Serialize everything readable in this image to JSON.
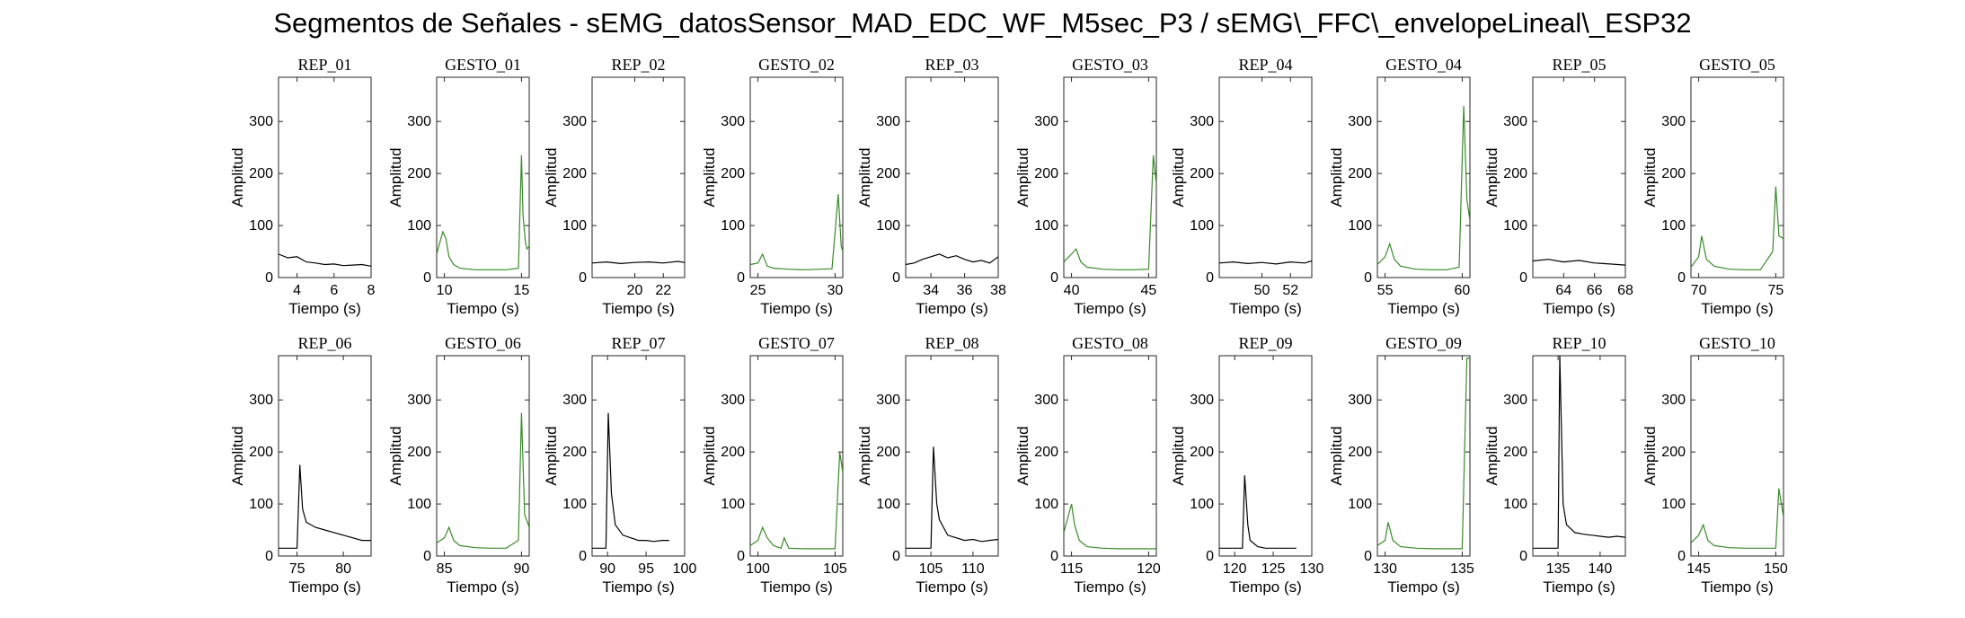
{
  "title": "Segmentos de Señales - sEMG_datosSensor_MAD_EDC_WF_M5sec_P3 / sEMG\\_FFC\\_envelopeLineal\\_ESP32",
  "colors": {
    "rep": "#000000",
    "gesto": "#3a8a2a"
  },
  "chart_data": [
    {
      "type": "line",
      "title": "REP_01",
      "xlabel": "Tiempo (s)",
      "ylabel": "Amplitud",
      "xlim": [
        3,
        8
      ],
      "ylim": [
        0,
        385
      ],
      "xticks": [
        4,
        6,
        8
      ],
      "yticks": [
        0,
        100,
        200,
        300
      ],
      "color": "#000000",
      "x": [
        3,
        3.5,
        4,
        4.5,
        5,
        5.5,
        6,
        6.5,
        7,
        7.5,
        8
      ],
      "y": [
        45,
        38,
        40,
        30,
        28,
        25,
        26,
        23,
        24,
        25,
        22
      ]
    },
    {
      "type": "line",
      "title": "GESTO_01",
      "xlabel": "Tiempo (s)",
      "ylabel": "Amplitud",
      "xlim": [
        9.5,
        15.5
      ],
      "ylim": [
        0,
        385
      ],
      "xticks": [
        10,
        15
      ],
      "yticks": [
        0,
        100,
        200,
        300
      ],
      "color": "#3a8a2a",
      "x": [
        9.5,
        9.9,
        10.1,
        10.3,
        10.6,
        11,
        12,
        13,
        14,
        14.8,
        15,
        15.1,
        15.25,
        15.35,
        15.5
      ],
      "y": [
        45,
        88,
        75,
        40,
        25,
        18,
        15,
        15,
        15,
        18,
        235,
        120,
        70,
        55,
        60
      ]
    },
    {
      "type": "line",
      "title": "REP_02",
      "xlabel": "Tiempo (s)",
      "ylabel": "Amplitud",
      "xlim": [
        17,
        23.5
      ],
      "ylim": [
        0,
        385
      ],
      "xticks": [
        20,
        22
      ],
      "yticks": [
        0,
        100,
        200,
        300
      ],
      "color": "#000000",
      "x": [
        17,
        18,
        19,
        20,
        21,
        22,
        23,
        23.5
      ],
      "y": [
        28,
        30,
        27,
        29,
        30,
        28,
        31,
        29
      ]
    },
    {
      "type": "line",
      "title": "GESTO_02",
      "xlabel": "Tiempo (s)",
      "ylabel": "Amplitud",
      "xlim": [
        24.5,
        30.5
      ],
      "ylim": [
        0,
        385
      ],
      "xticks": [
        25,
        30
      ],
      "yticks": [
        0,
        100,
        200,
        300
      ],
      "color": "#3a8a2a",
      "x": [
        24.5,
        25,
        25.3,
        25.6,
        26,
        27,
        28,
        29,
        29.8,
        30.2,
        30.4,
        30.5
      ],
      "y": [
        25,
        28,
        45,
        22,
        18,
        16,
        15,
        16,
        17,
        160,
        60,
        50
      ]
    },
    {
      "type": "line",
      "title": "REP_03",
      "xlabel": "Tiempo (s)",
      "ylabel": "Amplitud",
      "xlim": [
        32.5,
        38
      ],
      "ylim": [
        0,
        385
      ],
      "xticks": [
        34,
        36,
        38
      ],
      "yticks": [
        0,
        100,
        200,
        300
      ],
      "color": "#000000",
      "x": [
        32.5,
        33,
        33.5,
        34,
        34.5,
        35,
        35.5,
        36,
        36.5,
        37,
        37.5,
        38
      ],
      "y": [
        25,
        28,
        35,
        40,
        45,
        38,
        42,
        35,
        30,
        33,
        28,
        40
      ]
    },
    {
      "type": "line",
      "title": "GESTO_03",
      "xlabel": "Tiempo (s)",
      "ylabel": "Amplitud",
      "xlim": [
        39.5,
        45.5
      ],
      "ylim": [
        0,
        385
      ],
      "xticks": [
        40,
        45
      ],
      "yticks": [
        0,
        100,
        200,
        300
      ],
      "color": "#3a8a2a",
      "x": [
        39.5,
        40,
        40.3,
        40.6,
        41,
        42,
        43,
        44,
        45,
        45.3,
        45.5
      ],
      "y": [
        30,
        45,
        55,
        30,
        20,
        16,
        15,
        15,
        16,
        235,
        180
      ]
    },
    {
      "type": "line",
      "title": "REP_04",
      "xlabel": "Tiempo (s)",
      "ylabel": "Amplitud",
      "xlim": [
        47,
        53.5
      ],
      "ylim": [
        0,
        385
      ],
      "xticks": [
        50,
        52
      ],
      "yticks": [
        0,
        100,
        200,
        300
      ],
      "color": "#000000",
      "x": [
        47,
        48,
        49,
        50,
        51,
        52,
        53,
        53.5
      ],
      "y": [
        28,
        30,
        27,
        29,
        26,
        30,
        28,
        32
      ]
    },
    {
      "type": "line",
      "title": "GESTO_04",
      "xlabel": "Tiempo (s)",
      "ylabel": "Amplitud",
      "xlim": [
        54.5,
        60.5
      ],
      "ylim": [
        0,
        385
      ],
      "xticks": [
        55,
        60
      ],
      "yticks": [
        0,
        100,
        200,
        300
      ],
      "color": "#3a8a2a",
      "x": [
        54.5,
        55,
        55.3,
        55.6,
        56,
        57,
        58,
        59,
        59.8,
        60.1,
        60.3,
        60.5
      ],
      "y": [
        25,
        40,
        65,
        35,
        22,
        16,
        15,
        15,
        20,
        330,
        150,
        110
      ]
    },
    {
      "type": "line",
      "title": "REP_05",
      "xlabel": "Tiempo (s)",
      "ylabel": "Amplitud",
      "xlim": [
        62,
        68
      ],
      "ylim": [
        0,
        385
      ],
      "xticks": [
        64,
        66,
        68
      ],
      "yticks": [
        0,
        100,
        200,
        300
      ],
      "color": "#000000",
      "x": [
        62,
        63,
        64,
        65,
        66,
        67,
        68
      ],
      "y": [
        32,
        35,
        30,
        33,
        28,
        26,
        24
      ]
    },
    {
      "type": "line",
      "title": "GESTO_05",
      "xlabel": "Tiempo (s)",
      "ylabel": "Amplitud",
      "xlim": [
        69.5,
        75.5
      ],
      "ylim": [
        0,
        385
      ],
      "xticks": [
        70,
        75
      ],
      "yticks": [
        0,
        100,
        200,
        300
      ],
      "color": "#3a8a2a",
      "x": [
        69.5,
        70,
        70.2,
        70.5,
        71,
        72,
        73,
        74,
        74.8,
        75,
        75.2,
        75.5
      ],
      "y": [
        20,
        40,
        80,
        35,
        22,
        16,
        15,
        15,
        50,
        175,
        80,
        75
      ]
    },
    {
      "type": "line",
      "title": "REP_06",
      "xlabel": "Tiempo (s)",
      "ylabel": "Amplitud",
      "xlim": [
        73,
        83
      ],
      "ylim": [
        0,
        385
      ],
      "xticks": [
        75,
        80
      ],
      "yticks": [
        0,
        100,
        200,
        300
      ],
      "color": "#000000",
      "x": [
        73,
        74,
        75,
        75.3,
        75.6,
        76,
        77,
        78,
        79,
        80,
        81,
        82,
        83
      ],
      "y": [
        15,
        15,
        15,
        175,
        90,
        65,
        55,
        50,
        45,
        40,
        35,
        30,
        30
      ]
    },
    {
      "type": "line",
      "title": "GESTO_06",
      "xlabel": "Tiempo (s)",
      "ylabel": "Amplitud",
      "xlim": [
        84.5,
        90.5
      ],
      "ylim": [
        0,
        385
      ],
      "xticks": [
        85,
        90
      ],
      "yticks": [
        0,
        100,
        200,
        300
      ],
      "color": "#3a8a2a",
      "x": [
        84.5,
        85,
        85.3,
        85.6,
        86,
        87,
        88,
        89,
        89.8,
        90,
        90.2,
        90.5
      ],
      "y": [
        25,
        35,
        55,
        30,
        20,
        16,
        15,
        15,
        30,
        275,
        80,
        55
      ]
    },
    {
      "type": "line",
      "title": "REP_07",
      "xlabel": "Tiempo (s)",
      "ylabel": "Amplitud",
      "xlim": [
        88,
        100
      ],
      "ylim": [
        0,
        385
      ],
      "xticks": [
        90,
        95,
        100
      ],
      "yticks": [
        0,
        100,
        200,
        300
      ],
      "color": "#000000",
      "x": [
        88,
        89,
        89.8,
        90.1,
        90.5,
        91,
        92,
        93,
        94,
        95,
        96,
        97,
        98
      ],
      "y": [
        15,
        15,
        15,
        275,
        120,
        60,
        40,
        35,
        30,
        30,
        28,
        30,
        30
      ]
    },
    {
      "type": "line",
      "title": "GESTO_07",
      "xlabel": "Tiempo (s)",
      "ylabel": "Amplitud",
      "xlim": [
        99.5,
        105.5
      ],
      "ylim": [
        0,
        385
      ],
      "xticks": [
        100,
        105
      ],
      "yticks": [
        0,
        100,
        200,
        300
      ],
      "color": "#3a8a2a",
      "x": [
        99.5,
        100,
        100.3,
        100.6,
        101,
        101.5,
        101.7,
        102,
        103,
        104,
        105,
        105.3,
        105.5
      ],
      "y": [
        20,
        30,
        55,
        35,
        20,
        15,
        35,
        15,
        14,
        14,
        14,
        200,
        160
      ]
    },
    {
      "type": "line",
      "title": "REP_08",
      "xlabel": "Tiempo (s)",
      "ylabel": "Amplitud",
      "xlim": [
        102,
        113
      ],
      "ylim": [
        0,
        385
      ],
      "xticks": [
        105,
        110
      ],
      "yticks": [
        0,
        100,
        200,
        300
      ],
      "color": "#000000",
      "x": [
        102,
        103,
        104,
        105,
        105.3,
        105.7,
        106,
        107,
        108,
        109,
        110,
        111,
        112,
        113
      ],
      "y": [
        15,
        15,
        15,
        15,
        210,
        100,
        70,
        40,
        35,
        30,
        32,
        28,
        30,
        32
      ]
    },
    {
      "type": "line",
      "title": "GESTO_08",
      "xlabel": "Tiempo (s)",
      "ylabel": "Amplitud",
      "xlim": [
        114.5,
        120.5
      ],
      "ylim": [
        0,
        385
      ],
      "xticks": [
        115,
        120
      ],
      "yticks": [
        0,
        100,
        200,
        300
      ],
      "color": "#3a8a2a",
      "x": [
        114.5,
        115,
        115.2,
        115.5,
        116,
        117,
        118,
        119,
        120,
        120.5
      ],
      "y": [
        45,
        100,
        60,
        30,
        18,
        15,
        14,
        14,
        14,
        14
      ]
    },
    {
      "type": "line",
      "title": "REP_09",
      "xlabel": "Tiempo (s)",
      "ylabel": "Amplitud",
      "xlim": [
        118,
        130
      ],
      "ylim": [
        0,
        385
      ],
      "xticks": [
        120,
        125,
        130
      ],
      "yticks": [
        0,
        100,
        200,
        300
      ],
      "color": "#000000",
      "x": [
        118,
        119,
        120,
        121,
        121.3,
        121.7,
        122,
        123,
        124,
        125,
        126,
        127,
        128
      ],
      "y": [
        15,
        15,
        15,
        15,
        155,
        60,
        30,
        18,
        15,
        15,
        15,
        15,
        15
      ]
    },
    {
      "type": "line",
      "title": "GESTO_09",
      "xlabel": "Tiempo (s)",
      "ylabel": "Amplitud",
      "xlim": [
        129.5,
        135.5
      ],
      "ylim": [
        0,
        385
      ],
      "xticks": [
        130,
        135
      ],
      "yticks": [
        0,
        100,
        200,
        300
      ],
      "color": "#3a8a2a",
      "x": [
        129.5,
        130,
        130.2,
        130.5,
        131,
        132,
        133,
        134,
        135,
        135.3,
        135.5
      ],
      "y": [
        20,
        30,
        65,
        30,
        18,
        15,
        14,
        14,
        14,
        380,
        380
      ]
    },
    {
      "type": "line",
      "title": "REP_10",
      "xlabel": "Tiempo (s)",
      "ylabel": "Amplitud",
      "xlim": [
        132,
        143
      ],
      "ylim": [
        0,
        385
      ],
      "xticks": [
        135,
        140
      ],
      "yticks": [
        0,
        100,
        200,
        300
      ],
      "color": "#000000",
      "x": [
        132,
        133,
        134,
        135,
        135.2,
        135.6,
        136,
        137,
        138,
        139,
        140,
        141,
        142,
        143
      ],
      "y": [
        15,
        15,
        15,
        15,
        385,
        100,
        60,
        45,
        42,
        40,
        38,
        36,
        38,
        36
      ]
    },
    {
      "type": "line",
      "title": "GESTO_10",
      "xlabel": "Tiempo (s)",
      "ylabel": "Amplitud",
      "xlim": [
        144.5,
        150.5
      ],
      "ylim": [
        0,
        385
      ],
      "xticks": [
        145,
        150
      ],
      "yticks": [
        0,
        100,
        200,
        300
      ],
      "color": "#3a8a2a",
      "x": [
        144.5,
        145,
        145.3,
        145.6,
        146,
        147,
        148,
        149,
        150,
        150.2,
        150.5
      ],
      "y": [
        25,
        40,
        60,
        30,
        20,
        16,
        15,
        15,
        15,
        130,
        75
      ]
    }
  ]
}
